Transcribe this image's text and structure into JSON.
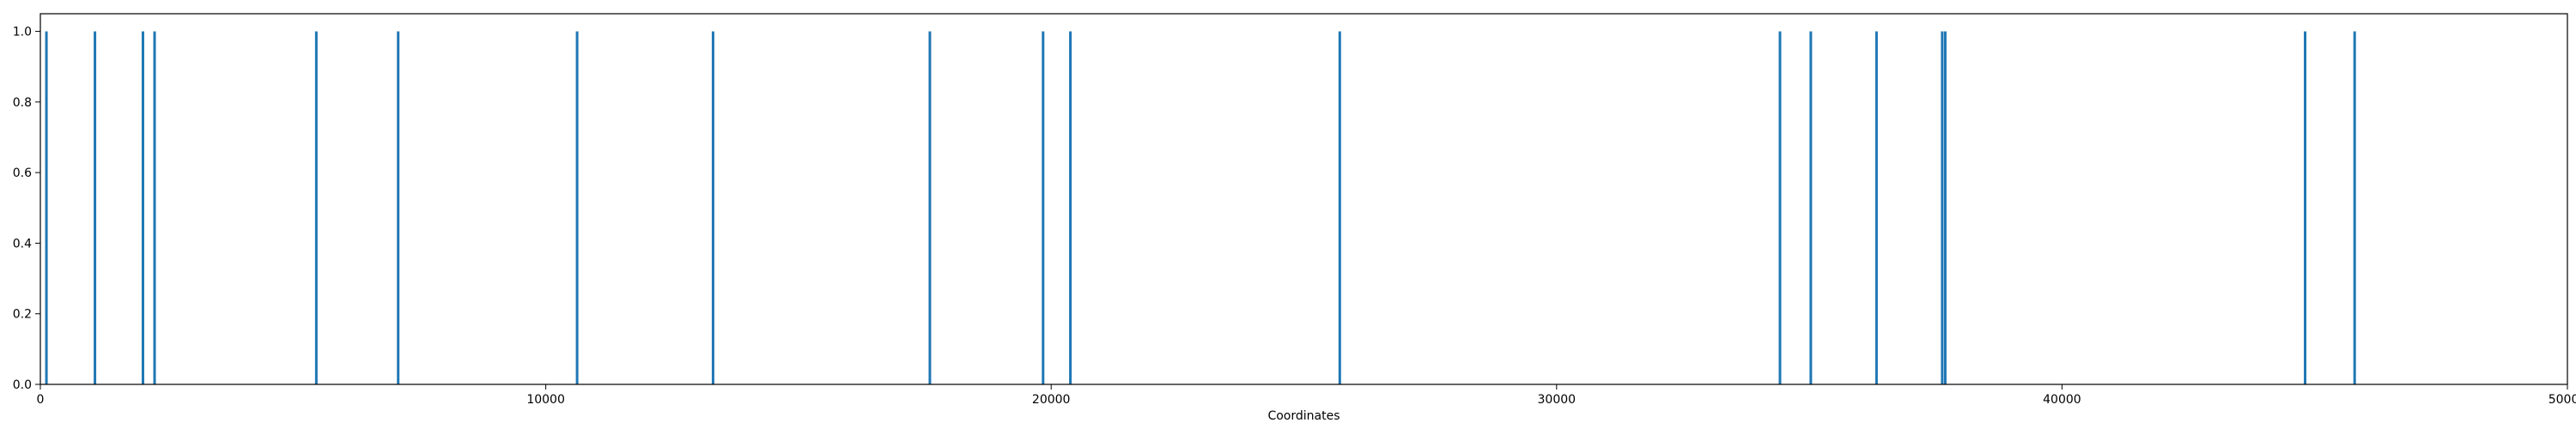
{
  "chart_data": {
    "type": "bar",
    "title": "",
    "xlabel": "Coordinates",
    "ylabel": "",
    "xlim": [
      0,
      50000
    ],
    "ylim": [
      0,
      1.05
    ],
    "grid": false,
    "x_ticks": [
      0,
      10000,
      20000,
      30000,
      40000,
      50000
    ],
    "y_ticks": [
      0.0,
      0.2,
      0.4,
      0.6,
      0.8,
      1.0
    ],
    "x_tick_labels": [
      "0",
      "10000",
      "20000",
      "30000",
      "40000",
      "50000"
    ],
    "y_tick_labels": [
      "0.0",
      "0.2",
      "0.4",
      "0.6",
      "0.8",
      "1.0"
    ],
    "bar_color": "#1f77b4",
    "bars": [
      {
        "x": 120,
        "value": 1.0
      },
      {
        "x": 1080,
        "value": 1.0
      },
      {
        "x": 2030,
        "value": 1.0
      },
      {
        "x": 2260,
        "value": 1.0
      },
      {
        "x": 5460,
        "value": 1.0
      },
      {
        "x": 7080,
        "value": 1.0
      },
      {
        "x": 10620,
        "value": 1.0
      },
      {
        "x": 13310,
        "value": 1.0
      },
      {
        "x": 17600,
        "value": 1.0
      },
      {
        "x": 19840,
        "value": 1.0
      },
      {
        "x": 20380,
        "value": 1.0
      },
      {
        "x": 25710,
        "value": 1.0
      },
      {
        "x": 34420,
        "value": 1.0
      },
      {
        "x": 35030,
        "value": 1.0
      },
      {
        "x": 36330,
        "value": 1.0
      },
      {
        "x": 37630,
        "value": 1.0
      },
      {
        "x": 37690,
        "value": 1.0
      },
      {
        "x": 44810,
        "value": 1.0
      },
      {
        "x": 45790,
        "value": 1.0
      }
    ]
  }
}
